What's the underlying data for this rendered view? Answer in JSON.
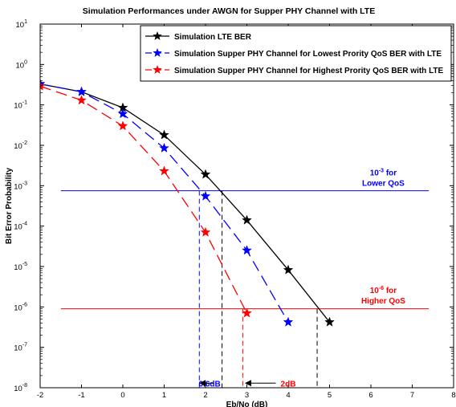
{
  "chart_data": {
    "type": "line",
    "title": "Simulation Performances under AWGN for Supper PHY Channel with LTE",
    "xlabel": "Eb/No (dB)",
    "ylabel": "Bit Error Probability",
    "xlim": [
      -2,
      8
    ],
    "ylim": [
      1e-08,
      10
    ],
    "yscale": "log",
    "x_ticks": [
      "-2",
      "-1",
      "0",
      "1",
      "2",
      "3",
      "4",
      "5",
      "6",
      "7",
      "8"
    ],
    "y_ticks": [
      {
        "base": "10",
        "exp": "1"
      },
      {
        "base": "10",
        "exp": "0"
      },
      {
        "base": "10",
        "exp": "-1"
      },
      {
        "base": "10",
        "exp": "-2"
      },
      {
        "base": "10",
        "exp": "-3"
      },
      {
        "base": "10",
        "exp": "-4"
      },
      {
        "base": "10",
        "exp": "-5"
      },
      {
        "base": "10",
        "exp": "-6"
      },
      {
        "base": "10",
        "exp": "-7"
      },
      {
        "base": "10",
        "exp": "-8"
      }
    ],
    "grid": false,
    "legend_position": "top-right",
    "series": [
      {
        "name": "Simulation LTE BER",
        "color": "#000000",
        "line": "solid",
        "marker": "star",
        "x": [
          -2,
          -1,
          0,
          1,
          2,
          3,
          4,
          5
        ],
        "y": [
          0.33,
          0.21,
          0.085,
          0.018,
          0.0019,
          0.00014,
          8.2e-06,
          4.2e-07
        ]
      },
      {
        "name": "Simulation Supper PHY Channel for  Lowest Prority QoS BER with LTE",
        "color": "#0000ff",
        "line": "dashed",
        "marker": "star",
        "x": [
          -2,
          -1,
          0,
          1,
          2,
          3,
          4
        ],
        "y": [
          0.33,
          0.21,
          0.06,
          0.0085,
          0.00055,
          2.5e-05,
          4.2e-07
        ]
      },
      {
        "name": "Simulation Supper PHY Channel for  Highest Prority QoS BER with LTE",
        "color": "#ff0000",
        "line": "dashed",
        "marker": "star",
        "x": [
          -2,
          -1,
          0,
          1,
          2,
          3
        ],
        "y": [
          0.29,
          0.13,
          0.03,
          0.0023,
          7e-05,
          7e-07
        ]
      }
    ],
    "reference_lines": [
      {
        "y": 0.00075,
        "color": "#0000ff"
      },
      {
        "y": 9e-07,
        "color": "#ff0000"
      }
    ],
    "annotations": [
      {
        "line1": "10-3 for",
        "line1_base": "10",
        "line1_exp": "-3",
        "line1_rest": " for",
        "line2": "Lower QoS",
        "color": "#0000ff",
        "x": 6.3,
        "y": 0.0018
      },
      {
        "line1": "10-6 for",
        "line1_base": "10",
        "line1_exp": "-6",
        "line1_rest": " for",
        "line2": "Higher QoS",
        "color": "#ff0000",
        "x": 6.3,
        "y": 2.2e-06
      },
      {
        "text": "0.6dB",
        "color": "#0000ff",
        "x": 2.1,
        "y": 1.3e-08
      },
      {
        "text": "2dB",
        "color": "#ff0000",
        "x": 4.0,
        "y": 1.3e-08
      }
    ],
    "vertical_markers": [
      {
        "x": 1.85,
        "color": "#0000ff"
      },
      {
        "x": 2.4,
        "color": "#000000"
      },
      {
        "x": 2.9,
        "color": "#ff0000"
      },
      {
        "x": 4.7,
        "color": "#000000"
      }
    ],
    "arrows": [
      {
        "x_from": 2.2,
        "x_to": 1.85,
        "y": 1.3e-08,
        "color": "#000000"
      },
      {
        "x_from": 3.7,
        "x_to": 2.95,
        "y": 1.3e-08,
        "color": "#000000"
      }
    ]
  }
}
